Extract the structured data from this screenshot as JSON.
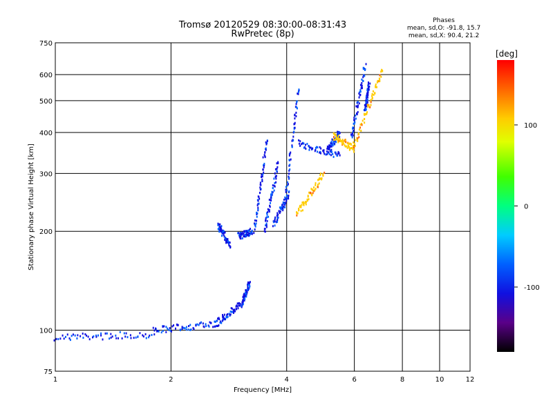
{
  "chart_data": {
    "type": "scatter",
    "title": "Tromsø 20120529 08:30:00-08:31:43",
    "subtitle": "RwPretec (8p)",
    "phases": {
      "heading": "Phases",
      "line1": "mean, sd,O: -91.8, 15.7",
      "line2": "mean, sd,X:  90.4, 21.2"
    },
    "xlabel": "Frequency [MHz]",
    "ylabel": "Stationary phase Virtual Height [km]",
    "xscale": "log",
    "yscale": "log",
    "xlim": [
      1,
      12
    ],
    "ylim": [
      75,
      750
    ],
    "xticks": [
      1,
      2,
      4,
      6,
      8,
      10,
      12
    ],
    "yticks": [
      75,
      100,
      200,
      300,
      400,
      500,
      600,
      750
    ],
    "grid": true,
    "colorbar": {
      "label": "[deg]",
      "range": [
        -180,
        180
      ],
      "ticks": [
        100,
        0,
        -100
      ],
      "colors": [
        "#000000",
        "#5a0088",
        "#1010e0",
        "#0060ff",
        "#00ccff",
        "#00ff80",
        "#40ff00",
        "#e0ff00",
        "#ffcc00",
        "#ff6600",
        "#ff0000"
      ]
    },
    "series": [
      {
        "phase": -95,
        "traces": [
          {
            "f": [
              1.0,
              1.8
            ],
            "h": [
              95,
              97
            ]
          },
          {
            "f": [
              1.8,
              2.6
            ],
            "h": [
              100,
              104
            ]
          },
          {
            "f": [
              2.6,
              3.05
            ],
            "h": [
              104,
              120
            ]
          },
          {
            "f": [
              3.05,
              3.2
            ],
            "h": [
              120,
              138
            ]
          },
          {
            "f": [
              2.65,
              2.85
            ],
            "h": [
              210,
              180
            ]
          },
          {
            "f": [
              3.0,
              3.25
            ],
            "h": [
              193,
              200
            ]
          },
          {
            "f": [
              3.3,
              3.55
            ],
            "h": [
              200,
              380
            ]
          },
          {
            "f": [
              3.5,
              3.8
            ],
            "h": [
              200,
              320
            ]
          },
          {
            "f": [
              3.7,
              4.05
            ],
            "h": [
              210,
              260
            ]
          },
          {
            "f": [
              3.95,
              4.3
            ],
            "h": [
              240,
              550
            ]
          },
          {
            "f": [
              4.3,
              5.5
            ],
            "h": [
              370,
              340
            ]
          },
          {
            "f": [
              5.1,
              5.5
            ],
            "h": [
              350,
              400
            ]
          },
          {
            "f": [
              5.9,
              6.4
            ],
            "h": [
              380,
              640
            ]
          },
          {
            "f": [
              6.4,
              6.55
            ],
            "h": [
              470,
              560
            ]
          }
        ]
      },
      {
        "phase": 115,
        "traces": [
          {
            "f": [
              4.25,
              5.0
            ],
            "h": [
              225,
              300
            ]
          },
          {
            "f": [
              5.3,
              6.0
            ],
            "h": [
              390,
              355
            ]
          },
          {
            "f": [
              6.0,
              7.1
            ],
            "h": [
              365,
              620
            ]
          }
        ]
      }
    ]
  }
}
